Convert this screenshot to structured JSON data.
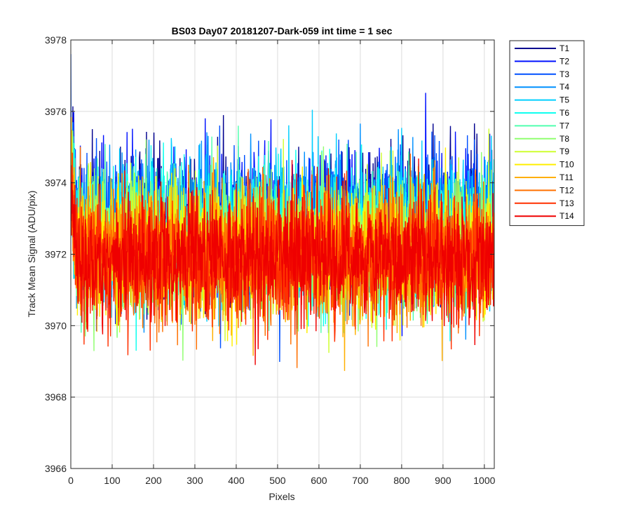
{
  "chart_data": {
    "type": "line",
    "title": "BS03 Day07 20181207-Dark-059 int time = 1 sec",
    "xlabel": "Pixels",
    "ylabel": "Track Mean Signal (ADU/pix)",
    "xlim": [
      0,
      1024
    ],
    "ylim": [
      3966,
      3978
    ],
    "xticks": [
      0,
      100,
      200,
      300,
      400,
      500,
      600,
      700,
      800,
      900,
      1000
    ],
    "yticks": [
      3966,
      3968,
      3970,
      3972,
      3974,
      3976,
      3978
    ],
    "grid": true,
    "legend_position": "outside-top-right",
    "noise": {
      "samples_per_series": 1024,
      "note_fields": [
        "mean",
        "spread"
      ]
    },
    "series": [
      {
        "name": "T1",
        "color": "#00008f",
        "mean": 3972.9,
        "spread": 0.95
      },
      {
        "name": "T2",
        "color": "#0010ff",
        "mean": 3972.9,
        "spread": 0.95
      },
      {
        "name": "T3",
        "color": "#0050ff",
        "mean": 3972.8,
        "spread": 0.95
      },
      {
        "name": "T4",
        "color": "#0090ff",
        "mean": 3972.7,
        "spread": 0.95
      },
      {
        "name": "T5",
        "color": "#00cfff",
        "mean": 3972.6,
        "spread": 0.95
      },
      {
        "name": "T6",
        "color": "#10ffef",
        "mean": 3972.5,
        "spread": 0.95
      },
      {
        "name": "T7",
        "color": "#50ffaf",
        "mean": 3972.4,
        "spread": 0.9
      },
      {
        "name": "T8",
        "color": "#90ff70",
        "mean": 3972.3,
        "spread": 0.9
      },
      {
        "name": "T9",
        "color": "#cfff30",
        "mean": 3972.2,
        "spread": 0.9
      },
      {
        "name": "T10",
        "color": "#ffef00",
        "mean": 3972.1,
        "spread": 0.9
      },
      {
        "name": "T11",
        "color": "#ffaf00",
        "mean": 3972.0,
        "spread": 0.9
      },
      {
        "name": "T12",
        "color": "#ff7000",
        "mean": 3972.0,
        "spread": 0.9
      },
      {
        "name": "T13",
        "color": "#ff3000",
        "mean": 3971.9,
        "spread": 0.9
      },
      {
        "name": "T14",
        "color": "#ef0000",
        "mean": 3971.9,
        "spread": 0.85
      }
    ]
  }
}
